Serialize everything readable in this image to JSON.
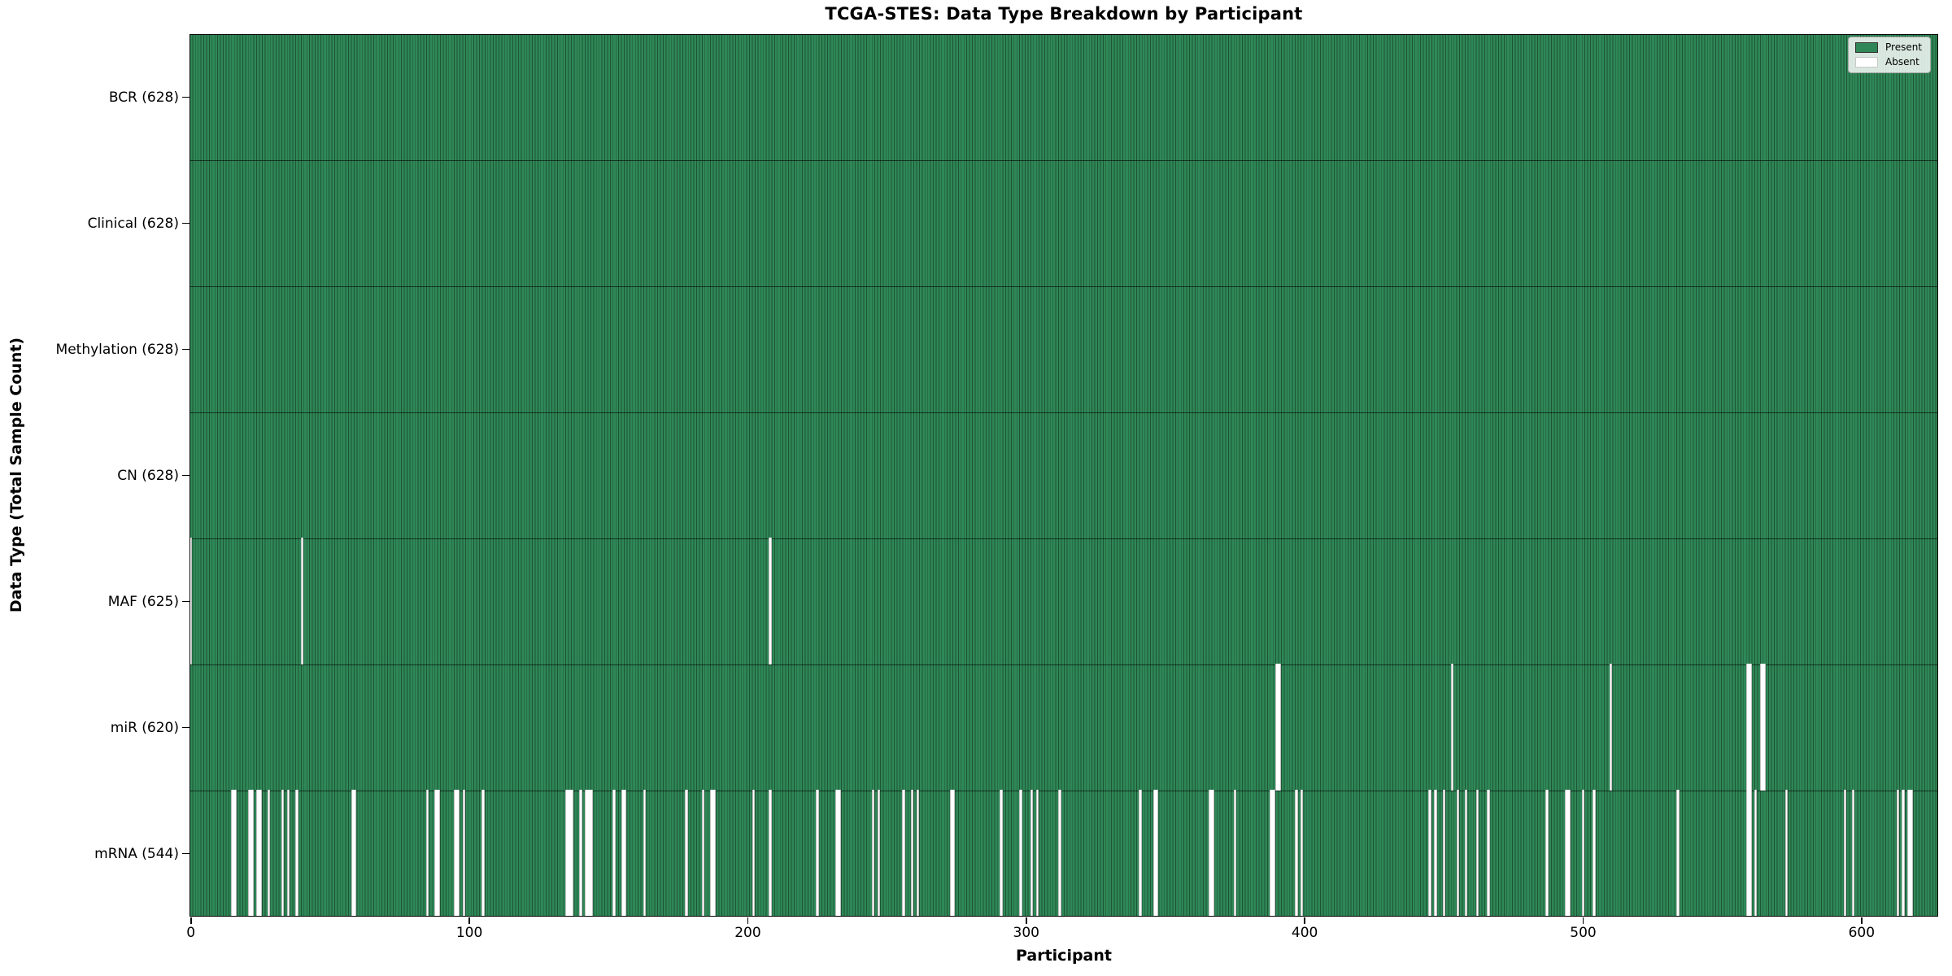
{
  "figure": {
    "title": "TCGA-STES: Data Type Breakdown by Participant",
    "xlabel": "Participant",
    "ylabel": "Data Type (Total Sample Count)"
  },
  "legend": {
    "items": [
      {
        "label": "Present",
        "color": "#2f8757"
      },
      {
        "label": "Absent",
        "color": "#ffffff"
      }
    ]
  },
  "colors": {
    "present_fill": "#2f8757",
    "bar_edge": "#1d5434",
    "absent_fill": "#ffffff",
    "row_separator": "#1a1a1a",
    "spine": "#000000",
    "background": "#ffffff"
  },
  "chart_data": {
    "type": "heatmap",
    "title": "TCGA-STES: Data Type Breakdown by Participant",
    "xlabel": "Participant",
    "ylabel": "Data Type (Total Sample Count)",
    "legend": [
      "Present",
      "Absent"
    ],
    "legend_position": "upper right",
    "grid": false,
    "n_participants": 628,
    "x_range": [
      0,
      628
    ],
    "x_ticks": [
      0,
      100,
      200,
      300,
      400,
      500,
      600
    ],
    "rows": [
      {
        "data_type": "BCR",
        "label": "BCR (628)",
        "present_count": 628,
        "absent_participants": []
      },
      {
        "data_type": "Clinical",
        "label": "Clinical (628)",
        "present_count": 628,
        "absent_participants": []
      },
      {
        "data_type": "Methylation",
        "label": "Methylation (628)",
        "present_count": 628,
        "absent_participants": []
      },
      {
        "data_type": "CN",
        "label": "CN (628)",
        "present_count": 628,
        "absent_participants": []
      },
      {
        "data_type": "MAF",
        "label": "MAF (625)",
        "present_count": 625,
        "absent_participants": [
          0,
          40,
          208
        ]
      },
      {
        "data_type": "miR",
        "label": "miR (620)",
        "present_count": 620,
        "absent_participants": [
          390,
          391,
          453,
          510,
          559,
          560,
          564,
          565
        ]
      },
      {
        "data_type": "mRNA",
        "label": "mRNA (544)",
        "present_count": 544,
        "absent_participants": [
          15,
          16,
          21,
          22,
          24,
          25,
          28,
          33,
          35,
          38,
          58,
          59,
          85,
          88,
          89,
          95,
          96,
          98,
          105,
          135,
          136,
          137,
          140,
          142,
          143,
          144,
          152,
          155,
          156,
          163,
          178,
          184,
          187,
          188,
          202,
          208,
          225,
          232,
          233,
          245,
          247,
          256,
          259,
          261,
          273,
          274,
          291,
          298,
          302,
          304,
          312,
          341,
          346,
          347,
          366,
          367,
          375,
          388,
          389,
          397,
          399,
          445,
          447,
          450,
          455,
          458,
          462,
          466,
          487,
          494,
          495,
          500,
          504,
          534,
          559,
          560,
          562,
          573,
          594,
          597,
          613,
          615,
          617,
          618
        ]
      }
    ]
  }
}
